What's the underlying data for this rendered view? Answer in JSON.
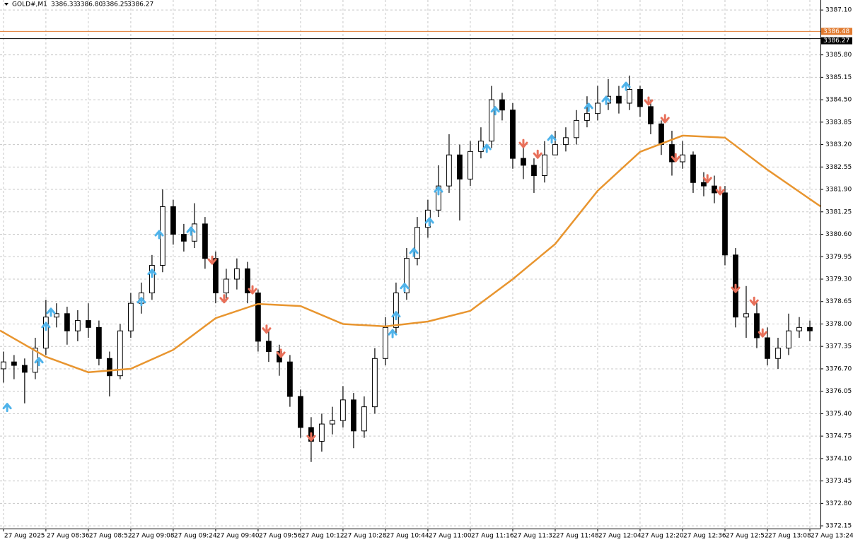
{
  "chart_data": {
    "type": "candlestick",
    "symbol": "GOLD#,M1",
    "header_values": [
      "3386.33",
      "3386.80",
      "3386.25",
      "3386.27"
    ],
    "x": [
      0,
      4,
      8,
      12,
      16,
      20,
      24,
      28,
      32,
      36,
      40,
      44,
      48,
      52,
      56,
      60,
      64,
      68,
      72,
      76,
      80,
      84,
      88,
      92,
      96,
      100,
      104,
      108,
      112,
      116,
      120,
      124,
      128,
      132,
      136,
      140,
      144,
      148,
      152,
      156,
      160,
      164,
      168,
      172,
      176,
      180,
      184,
      188,
      192,
      196,
      200,
      204,
      208,
      212,
      216,
      220,
      224,
      228,
      232,
      236,
      240,
      244,
      248,
      252,
      256,
      260,
      264,
      268,
      272,
      276,
      280,
      284,
      288,
      292,
      296,
      300,
      304
    ],
    "open": [
      3376.7,
      3376.9,
      3376.8,
      3376.6,
      3377.3,
      3378.2,
      3378.3,
      3377.8,
      3378.1,
      3377.9,
      3377.0,
      3376.5,
      3377.8,
      3378.6,
      3378.9,
      3379.7,
      3381.4,
      3380.6,
      3380.4,
      3380.9,
      3379.9,
      3378.9,
      3379.3,
      3379.6,
      3378.9,
      3377.5,
      3377.2,
      3376.9,
      3375.9,
      3375.0,
      3374.6,
      3375.1,
      3375.2,
      3375.8,
      3374.9,
      3375.6,
      3377.0,
      3377.9,
      3378.9,
      3379.9,
      3380.8,
      3381.3,
      3382.0,
      3382.9,
      3382.2,
      3383.0,
      3383.3,
      3384.5,
      3384.2,
      3382.8,
      3382.6,
      3382.3,
      3382.9,
      3383.2,
      3383.4,
      3383.9,
      3384.1,
      3384.4,
      3384.6,
      3384.4,
      3384.8,
      3384.3,
      3383.8,
      3383.2,
      3382.7,
      3382.9,
      3382.1,
      3382.0,
      3381.8,
      3380.0,
      3378.2,
      3378.3,
      3377.6,
      3377.0,
      3377.3,
      3377.8,
      3377.9
    ],
    "high": [
      3377.2,
      3377.1,
      3377.0,
      3377.6,
      3378.7,
      3378.6,
      3378.5,
      3378.4,
      3378.6,
      3378.1,
      3377.2,
      3378.0,
      3378.9,
      3379.2,
      3380.0,
      3381.9,
      3381.6,
      3380.9,
      3381.5,
      3381.1,
      3380.1,
      3379.6,
      3379.9,
      3379.8,
      3379.0,
      3377.8,
      3377.4,
      3377.1,
      3376.1,
      3375.3,
      3375.4,
      3375.6,
      3376.2,
      3376.0,
      3375.9,
      3377.3,
      3378.2,
      3379.2,
      3380.2,
      3381.1,
      3381.6,
      3382.6,
      3383.5,
      3383.2,
      3383.3,
      3383.7,
      3384.9,
      3384.7,
      3384.4,
      3383.1,
      3382.8,
      3383.3,
      3383.6,
      3383.7,
      3384.2,
      3384.6,
      3384.9,
      3385.1,
      3384.9,
      3385.2,
      3384.9,
      3384.5,
      3383.9,
      3383.6,
      3383.3,
      3383.0,
      3382.4,
      3382.3,
      3382.0,
      3380.2,
      3379.1,
      3378.6,
      3377.9,
      3377.6,
      3378.3,
      3378.2,
      3378.1
    ],
    "low": [
      3376.3,
      3376.4,
      3375.7,
      3376.4,
      3377.1,
      3377.9,
      3377.4,
      3377.5,
      3377.6,
      3376.8,
      3375.9,
      3376.4,
      3377.6,
      3378.3,
      3378.7,
      3379.5,
      3380.3,
      3380.1,
      3380.2,
      3379.6,
      3378.6,
      3378.7,
      3379.0,
      3378.6,
      3377.2,
      3376.9,
      3376.5,
      3375.6,
      3374.7,
      3374.0,
      3374.3,
      3374.8,
      3375.0,
      3374.4,
      3374.7,
      3375.4,
      3376.8,
      3377.7,
      3378.7,
      3379.7,
      3380.5,
      3381.1,
      3381.8,
      3381.0,
      3382.0,
      3382.8,
      3383.1,
      3383.9,
      3382.5,
      3382.2,
      3381.8,
      3382.1,
      3382.9,
      3383.0,
      3383.2,
      3383.7,
      3383.9,
      3384.2,
      3384.1,
      3384.2,
      3384.0,
      3383.5,
      3382.9,
      3382.3,
      3382.5,
      3381.8,
      3381.7,
      3381.5,
      3379.7,
      3377.9,
      3377.6,
      3377.3,
      3376.8,
      3376.7,
      3377.1,
      3377.6,
      3377.5
    ],
    "close": [
      3376.9,
      3376.8,
      3376.6,
      3377.3,
      3378.2,
      3378.3,
      3377.8,
      3378.1,
      3377.9,
      3377.0,
      3376.5,
      3377.8,
      3378.6,
      3378.9,
      3379.7,
      3381.4,
      3380.6,
      3380.4,
      3380.9,
      3379.9,
      3378.9,
      3379.3,
      3379.6,
      3378.9,
      3377.5,
      3377.2,
      3376.9,
      3375.9,
      3375.0,
      3374.6,
      3375.1,
      3375.2,
      3375.8,
      3374.9,
      3375.6,
      3377.0,
      3377.9,
      3378.9,
      3379.9,
      3380.8,
      3381.3,
      3382.0,
      3382.9,
      3382.2,
      3383.0,
      3383.3,
      3384.5,
      3384.2,
      3382.8,
      3382.6,
      3382.3,
      3382.9,
      3383.2,
      3383.4,
      3383.9,
      3384.1,
      3384.4,
      3384.6,
      3384.4,
      3384.8,
      3384.3,
      3383.8,
      3383.2,
      3382.7,
      3382.9,
      3382.1,
      3382.0,
      3381.8,
      3380.0,
      3378.2,
      3378.3,
      3377.6,
      3377.0,
      3377.3,
      3377.8,
      3377.9,
      3377.8
    ],
    "moving_average": {
      "color": "#e8952f",
      "x": [
        -1.3,
        16,
        32,
        48,
        64,
        80,
        96,
        112,
        128,
        144,
        160,
        176,
        192,
        208,
        224,
        240,
        256,
        272,
        288,
        304,
        308
      ],
      "values": [
        3377.81,
        3377.05,
        3376.6,
        3376.7,
        3377.25,
        3378.17,
        3378.58,
        3378.52,
        3378.0,
        3377.93,
        3378.07,
        3378.38,
        3379.3,
        3380.32,
        3381.86,
        3382.99,
        3383.46,
        3383.4,
        3382.47,
        3381.62,
        3381.41
      ]
    },
    "signals_up": {
      "color": "#4fb3ea",
      "x": [
        1.4,
        13.4,
        16.0,
        17.9,
        52.0,
        56.0,
        58.7,
        70.7,
        146.7,
        148.0,
        151.2,
        154.7,
        160.6,
        164.0,
        182.2,
        185.4,
        206.7,
        220.6,
        227.2,
        234.7
      ],
      "values": [
        3375.62,
        3376.95,
        3377.97,
        3378.38,
        3378.69,
        3379.51,
        3380.63,
        3380.73,
        3377.76,
        3378.28,
        3379.1,
        3380.12,
        3381.0,
        3381.9,
        3383.13,
        3384.22,
        3383.4,
        3384.32,
        3384.52,
        3384.93
      ]
    },
    "signals_down": {
      "color": "#e8705a",
      "x": [
        78.7,
        83.2,
        93.9,
        99.2,
        104.6,
        116.0,
        196.0,
        201.4,
        243.2,
        249.4,
        253.4,
        265.4,
        270.2,
        276.0,
        283.0,
        286.2
      ],
      "values": [
        3379.81,
        3378.69,
        3378.95,
        3377.81,
        3377.11,
        3374.69,
        3383.19,
        3382.88,
        3384.42,
        3383.91,
        3382.78,
        3382.17,
        3381.82,
        3378.99,
        3378.62,
        3377.7
      ]
    },
    "price_lines": [
      {
        "value": 3386.48,
        "color": "#e07a2f"
      },
      {
        "value": 3386.27,
        "color": "#000000"
      }
    ],
    "xlim": [
      -1.3,
      308
    ],
    "ylim": [
      3372.07,
      3387.39
    ],
    "xticks": [
      {
        "value": 0,
        "label": "27 Aug 2025"
      },
      {
        "value": 16,
        "label": "27 Aug 08:36"
      },
      {
        "value": 32,
        "label": "27 Aug 08:52"
      },
      {
        "value": 48,
        "label": "27 Aug 09:08"
      },
      {
        "value": 64,
        "label": "27 Aug 09:24"
      },
      {
        "value": 80,
        "label": "27 Aug 09:40"
      },
      {
        "value": 96,
        "label": "27 Aug 09:56"
      },
      {
        "value": 112,
        "label": "27 Aug 10:12"
      },
      {
        "value": 128,
        "label": "27 Aug 10:28"
      },
      {
        "value": 144,
        "label": "27 Aug 10:44"
      },
      {
        "value": 160,
        "label": "27 Aug 11:00"
      },
      {
        "value": 176,
        "label": "27 Aug 11:16"
      },
      {
        "value": 192,
        "label": "27 Aug 11:32"
      },
      {
        "value": 208,
        "label": "27 Aug 11:48"
      },
      {
        "value": 224,
        "label": "27 Aug 12:04"
      },
      {
        "value": 240,
        "label": "27 Aug 12:20"
      },
      {
        "value": 256,
        "label": "27 Aug 12:36"
      },
      {
        "value": 272,
        "label": "27 Aug 12:52"
      },
      {
        "value": 288,
        "label": "27 Aug 13:08"
      },
      {
        "value": 304,
        "label": "27 Aug 13:24"
      }
    ],
    "yticks": [
      {
        "value": 3387.1,
        "label": "3387.10"
      },
      {
        "value": 3385.8,
        "label": "3385.80"
      },
      3385.15,
      {
        "value": 3384.5,
        "label": "3384.50"
      },
      3383.85,
      {
        "value": 3383.2,
        "label": "3383.20"
      },
      3382.55,
      {
        "value": 3381.9,
        "label": "3381.90"
      },
      3381.25,
      {
        "value": 3380.6,
        "label": "3380.60"
      },
      3379.95,
      {
        "value": 3379.3,
        "label": "3379.30"
      },
      3378.65,
      {
        "value": 3378.0,
        "label": "3378.00"
      },
      3377.35,
      {
        "value": 3376.7,
        "label": "3376.70"
      },
      3376.05,
      {
        "value": 3375.4,
        "label": "3375.40"
      },
      3374.75,
      {
        "value": 3374.1,
        "label": "3374.10"
      },
      3373.45,
      {
        "value": 3372.8,
        "label": "3372.80"
      },
      3372.15
    ],
    "grid": true,
    "bull_color": "#ffffff",
    "bear_color": "#000000"
  }
}
